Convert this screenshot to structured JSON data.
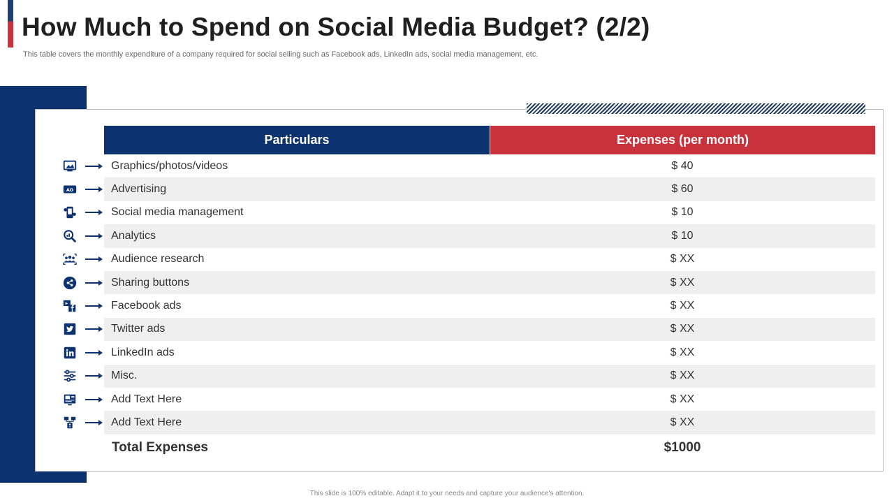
{
  "header": {
    "title": "How Much to Spend on Social Media Budget? (2/2)",
    "subtitle": "This table covers the monthly expenditure of a company required for social selling such as Facebook ads, LinkedIn ads, social media management, etc."
  },
  "table": {
    "headers": [
      "Particulars",
      "Expenses (per month)"
    ],
    "rows": [
      {
        "particular": "Graphics/photos/videos",
        "expense": "$ 40",
        "icon": "graphics-icon"
      },
      {
        "particular": "Advertising",
        "expense": "$ 60",
        "icon": "ad-icon"
      },
      {
        "particular": "Social media management",
        "expense": "$ 10",
        "icon": "management-icon"
      },
      {
        "particular": "Analytics",
        "expense": "$ 10",
        "icon": "analytics-icon"
      },
      {
        "particular": "Audience research",
        "expense": "$ XX",
        "icon": "audience-icon"
      },
      {
        "particular": "Sharing buttons",
        "expense": "$ XX",
        "icon": "share-icon"
      },
      {
        "particular": "Facebook ads",
        "expense": "$ XX",
        "icon": "facebook-icon"
      },
      {
        "particular": "Twitter ads",
        "expense": "$ XX",
        "icon": "twitter-icon"
      },
      {
        "particular": "LinkedIn ads",
        "expense": "$ XX",
        "icon": "linkedin-icon"
      },
      {
        "particular": "Misc.",
        "expense": "$ XX",
        "icon": "sliders-icon"
      },
      {
        "particular": "Add Text Here",
        "expense": "$ XX",
        "icon": "media-icon"
      },
      {
        "particular": "Add Text Here",
        "expense": "$ XX",
        "icon": "network-icon"
      }
    ],
    "total": {
      "label": "Total Expenses",
      "value": "$1000"
    }
  },
  "footer": {
    "text": "This slide is 100% editable. Adapt it to your needs and capture your audience's attention."
  },
  "colors": {
    "navy": "#0c3270",
    "red": "#c9323b",
    "stripe": "#efefef"
  }
}
